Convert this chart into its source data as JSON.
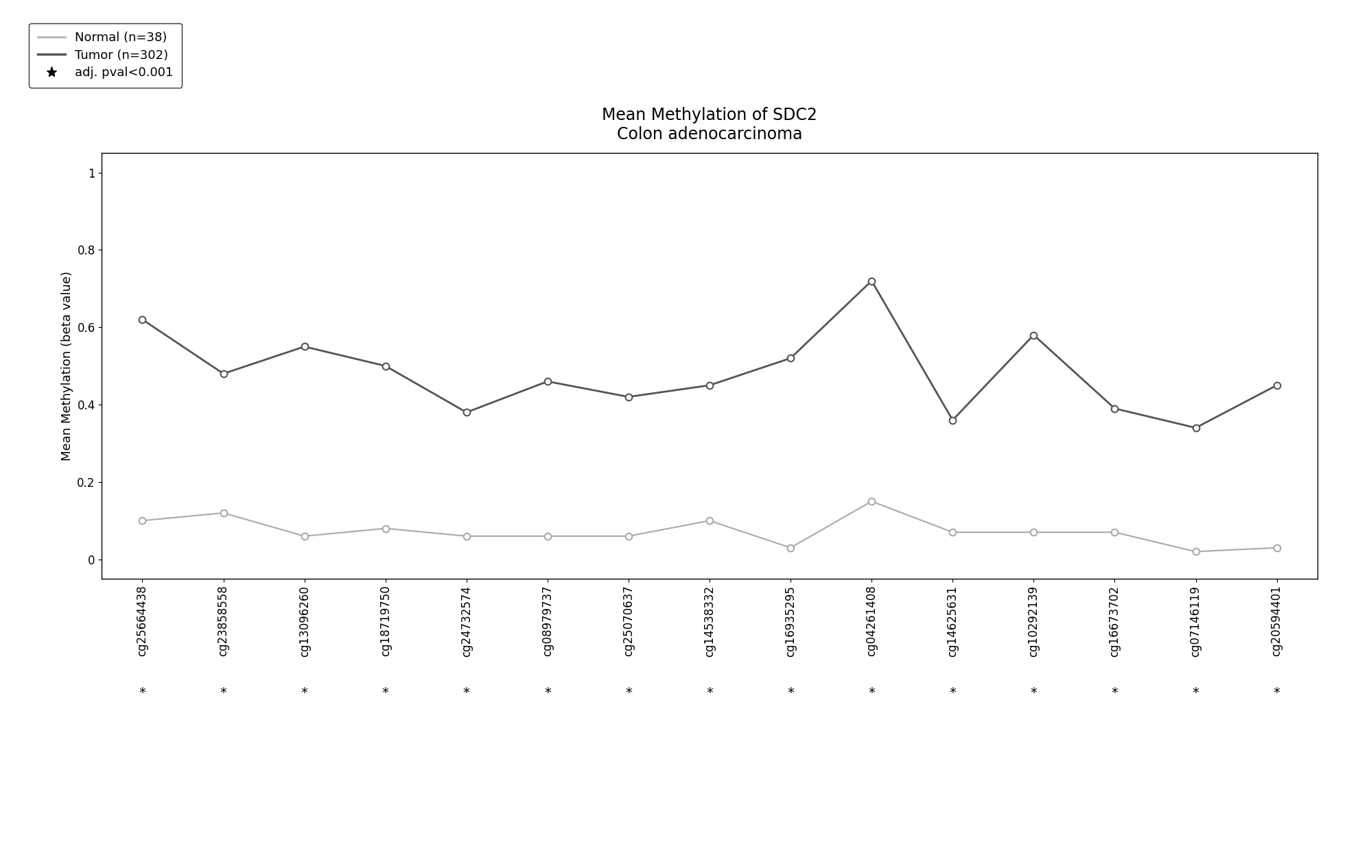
{
  "title_line1": "Mean Methylation of SDC2",
  "title_line2": "Colon adenocarcinoma",
  "ylabel": "Mean Methylation (beta value)",
  "legend_normal": "Normal (n=38)",
  "legend_tumor": "Tumor (n=302)",
  "legend_star": "adj. pval<0.001",
  "categories": [
    "cg25664438",
    "cg23858558",
    "cg13096260",
    "cg18719750",
    "cg24732574",
    "cg08979737",
    "cg25070637",
    "cg14538332",
    "cg16935295",
    "cg04261408",
    "cg14625631",
    "cg10292139",
    "cg16673702",
    "cg07146119",
    "cg20594401"
  ],
  "normal_values": [
    0.1,
    0.12,
    0.06,
    0.08,
    0.06,
    0.06,
    0.06,
    0.1,
    0.03,
    0.15,
    0.07,
    0.07,
    0.07,
    0.02,
    0.03
  ],
  "tumor_values": [
    0.62,
    0.48,
    0.55,
    0.5,
    0.38,
    0.46,
    0.42,
    0.45,
    0.52,
    0.72,
    0.36,
    0.58,
    0.39,
    0.34,
    0.45
  ],
  "normal_color": "#aaaaaa",
  "tumor_color": "#555555",
  "ylim": [
    -0.05,
    1.05
  ],
  "background_color": "#ffffff",
  "title_fontsize": 17,
  "axis_fontsize": 13,
  "tick_fontsize": 12,
  "legend_fontsize": 13
}
